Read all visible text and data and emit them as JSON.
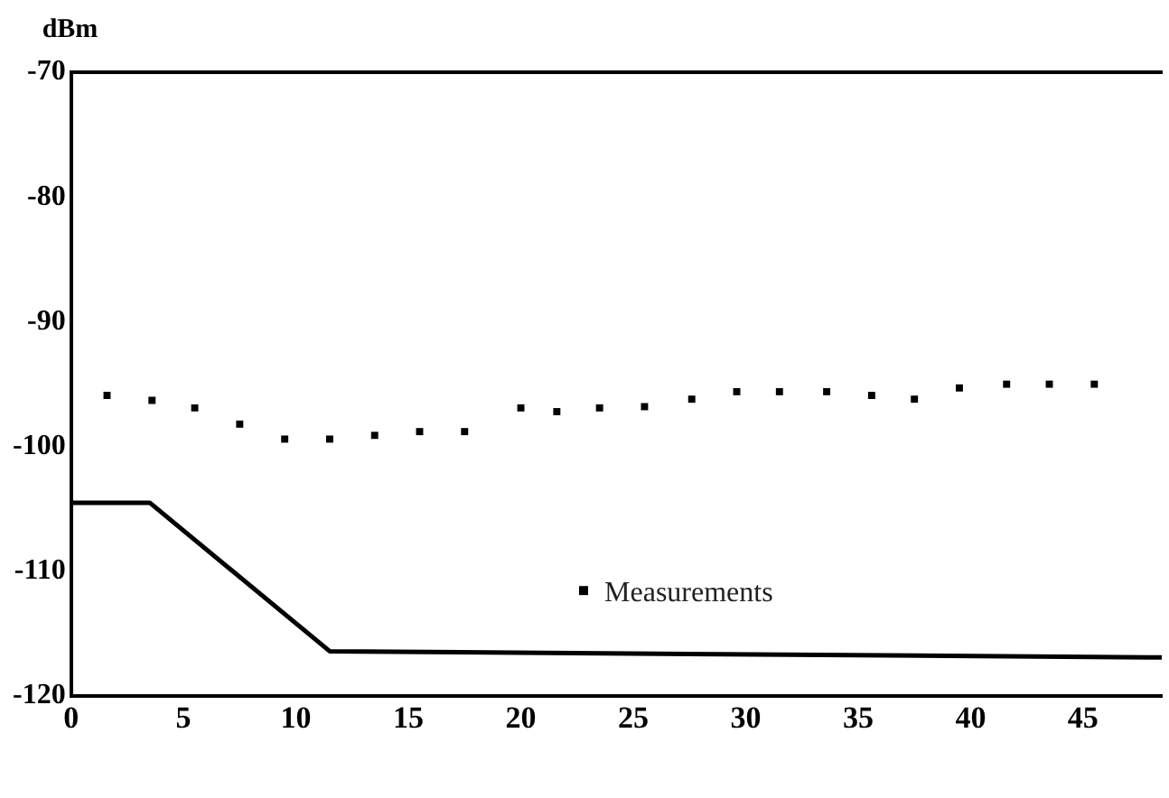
{
  "chart_data": {
    "type": "line",
    "ylabel": "dBm",
    "xlim": [
      0,
      48.5
    ],
    "xticks": [
      0,
      5,
      10,
      15,
      20,
      25,
      30,
      35,
      40,
      45
    ],
    "ylim": [
      -120,
      -70
    ],
    "yticks": [
      -120,
      -110,
      -100,
      -90,
      -80,
      -70
    ],
    "grid": false,
    "legend": "bottom",
    "series": [
      {
        "type": "line",
        "color": "#000000",
        "marker": "none",
        "line_style": "solid",
        "x": [
          0,
          3.5,
          11.5,
          48.5
        ],
        "values": [
          -104.5,
          -104.5,
          -116.4,
          -116.9
        ]
      },
      {
        "type": "scatter",
        "name": "Measurements",
        "color": "#000000",
        "marker": "square",
        "x": [
          1.6,
          3.6,
          5.5,
          7.5,
          9.5,
          11.5,
          13.5,
          15.5,
          17.5,
          20,
          21.6,
          23.5,
          25.5,
          27.6,
          29.6,
          31.5,
          33.6,
          35.6,
          37.5,
          39.5,
          41.6,
          43.5,
          45.5
        ],
        "values": [
          -95.9,
          -96.3,
          -96.9,
          -98.2,
          -99.4,
          -99.4,
          -99.1,
          -98.8,
          -98.8,
          -96.9,
          -97.2,
          -96.9,
          -96.8,
          -96.2,
          -95.6,
          -95.6,
          -95.6,
          -95.9,
          -96.2,
          -95.3,
          -95.0,
          -95.0,
          -95.0
        ]
      }
    ]
  }
}
